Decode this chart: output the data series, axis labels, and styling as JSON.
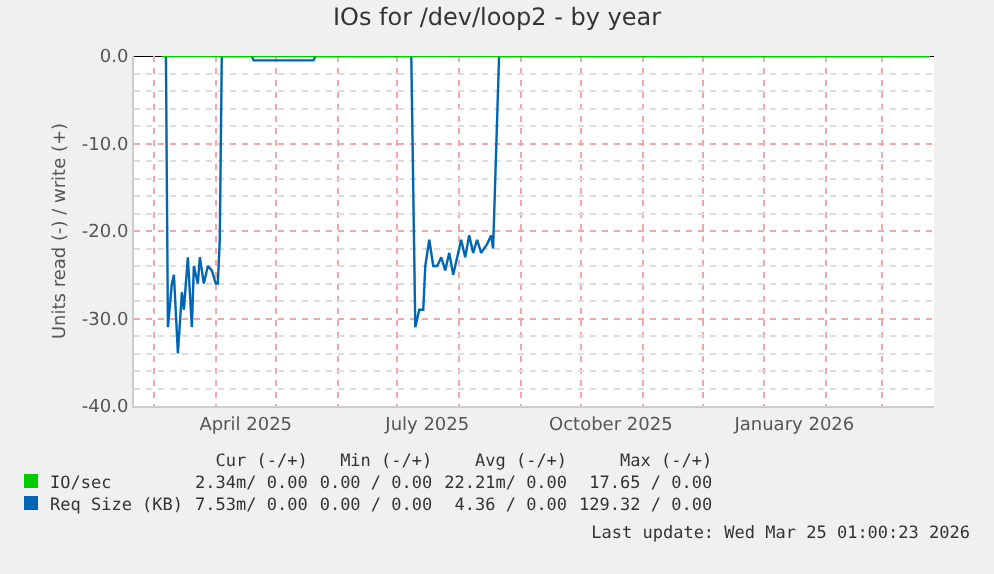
{
  "chart_data": {
    "type": "line",
    "title": "IOs for /dev/loop2 - by year",
    "ylabel": "Units read (-) / write (+)",
    "xlim": [
      "2025-02-19",
      "2026-03-27"
    ],
    "xticks": [
      {
        "value": "2025-04-16",
        "label": "April 2025"
      },
      {
        "value": "2025-07-16",
        "label": "July 2025"
      },
      {
        "value": "2025-10-16",
        "label": "October 2025"
      },
      {
        "value": "2026-01-16",
        "label": "January 2026"
      }
    ],
    "ylim": [
      -40,
      0
    ],
    "yticks": [
      {
        "value": -40,
        "label": "-40.0"
      },
      {
        "value": -30,
        "label": "-30.0"
      },
      {
        "value": -20,
        "label": "-20.0"
      },
      {
        "value": -10,
        "label": "-10.0"
      },
      {
        "value": 0,
        "label": "0.0"
      }
    ],
    "grid": true,
    "legend": "bottom",
    "line_style": "solid",
    "marker": "none",
    "series": [
      {
        "name": "IO/sec",
        "color": "#00cc00",
        "x": [
          "2025-03-05",
          "2025-04-04",
          "2025-07-08",
          "2025-10-01",
          "2026-01-01",
          "2026-03-25"
        ],
        "values": [
          0,
          0,
          0,
          0,
          0,
          0
        ]
      },
      {
        "name": "Req Size (KB)",
        "color": "#0066b3",
        "x": [
          "2025-03-05",
          "2025-03-07",
          "2025-03-08",
          "2025-03-10",
          "2025-03-11",
          "2025-03-13",
          "2025-03-15",
          "2025-03-16",
          "2025-03-18",
          "2025-03-20",
          "2025-03-21",
          "2025-03-23",
          "2025-03-24",
          "2025-03-26",
          "2025-03-28",
          "2025-03-30",
          "2025-04-01",
          "2025-04-02",
          "2025-04-03",
          "2025-04-04",
          "2025-04-19",
          "2025-04-20",
          "2025-05-20",
          "2025-05-21",
          "2025-07-08",
          "2025-07-10",
          "2025-07-12",
          "2025-07-14",
          "2025-07-15",
          "2025-07-17",
          "2025-07-19",
          "2025-07-21",
          "2025-07-23",
          "2025-07-25",
          "2025-07-27",
          "2025-07-29",
          "2025-07-31",
          "2025-08-02",
          "2025-08-04",
          "2025-08-06",
          "2025-08-08",
          "2025-08-10",
          "2025-08-12",
          "2025-08-15",
          "2025-08-17",
          "2025-08-18",
          "2025-08-21",
          "2026-03-25"
        ],
        "values": [
          0,
          0,
          -31,
          -26,
          -25,
          -34,
          -27,
          -29,
          -23,
          -31,
          -24,
          -26,
          -23,
          -26,
          -24,
          -24.5,
          -26,
          -26,
          -21,
          0,
          0,
          -0.5,
          -0.5,
          0,
          0,
          -31,
          -29,
          -29,
          -24,
          -21,
          -24,
          -24,
          -23,
          -24.5,
          -22.5,
          -25,
          -23,
          -21,
          -23,
          -20.5,
          -22.5,
          -21,
          -22.5,
          -21.5,
          -20.5,
          -22,
          0,
          0
        ]
      }
    ],
    "annotations": [
      "Cur (-/+)",
      "Min (-/+)",
      "Avg (-/+)",
      "Max (-/+)",
      "2.34m/ 0.00",
      "0.00 / 0.00",
      "22.21m/ 0.00",
      "17.65 / 0.00",
      "7.53m/ 0.00",
      "0.00 / 0.00",
      "4.36 / 0.00",
      "129.32 / 0.00",
      "Last update: Wed Mar 25 01:00:23 2026"
    ]
  }
}
